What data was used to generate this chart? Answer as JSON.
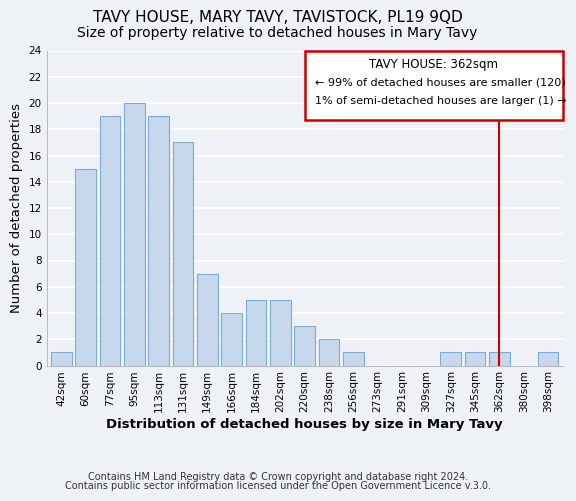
{
  "title": "TAVY HOUSE, MARY TAVY, TAVISTOCK, PL19 9QD",
  "subtitle": "Size of property relative to detached houses in Mary Tavy",
  "xlabel": "Distribution of detached houses by size in Mary Tavy",
  "ylabel": "Number of detached properties",
  "bar_labels": [
    "42sqm",
    "60sqm",
    "77sqm",
    "95sqm",
    "113sqm",
    "131sqm",
    "149sqm",
    "166sqm",
    "184sqm",
    "202sqm",
    "220sqm",
    "238sqm",
    "256sqm",
    "273sqm",
    "291sqm",
    "309sqm",
    "327sqm",
    "345sqm",
    "362sqm",
    "380sqm",
    "398sqm"
  ],
  "bar_values": [
    1,
    15,
    19,
    20,
    19,
    17,
    7,
    4,
    5,
    5,
    3,
    2,
    1,
    0,
    0,
    0,
    1,
    1,
    1,
    0,
    1
  ],
  "bar_color": "#c8d8ec",
  "bar_edge_color": "#7badd4",
  "ylim": [
    0,
    24
  ],
  "yticks": [
    0,
    2,
    4,
    6,
    8,
    10,
    12,
    14,
    16,
    18,
    20,
    22,
    24
  ],
  "vline_x_index": 18,
  "vline_color": "#cc0000",
  "annotation_title": "TAVY HOUSE: 362sqm",
  "annotation_line1": "← 99% of detached houses are smaller (120)",
  "annotation_line2": "1% of semi-detached houses are larger (1) →",
  "annotation_box_edgecolor": "#cc0000",
  "footer_line1": "Contains HM Land Registry data © Crown copyright and database right 2024.",
  "footer_line2": "Contains public sector information licensed under the Open Government Licence v.3.0.",
  "background_color": "#eef2f7",
  "grid_color": "#ffffff",
  "title_fontsize": 11,
  "subtitle_fontsize": 10,
  "axis_label_fontsize": 9.5,
  "tick_fontsize": 7.5,
  "footer_fontsize": 7,
  "ann_fontsize": 8.5
}
